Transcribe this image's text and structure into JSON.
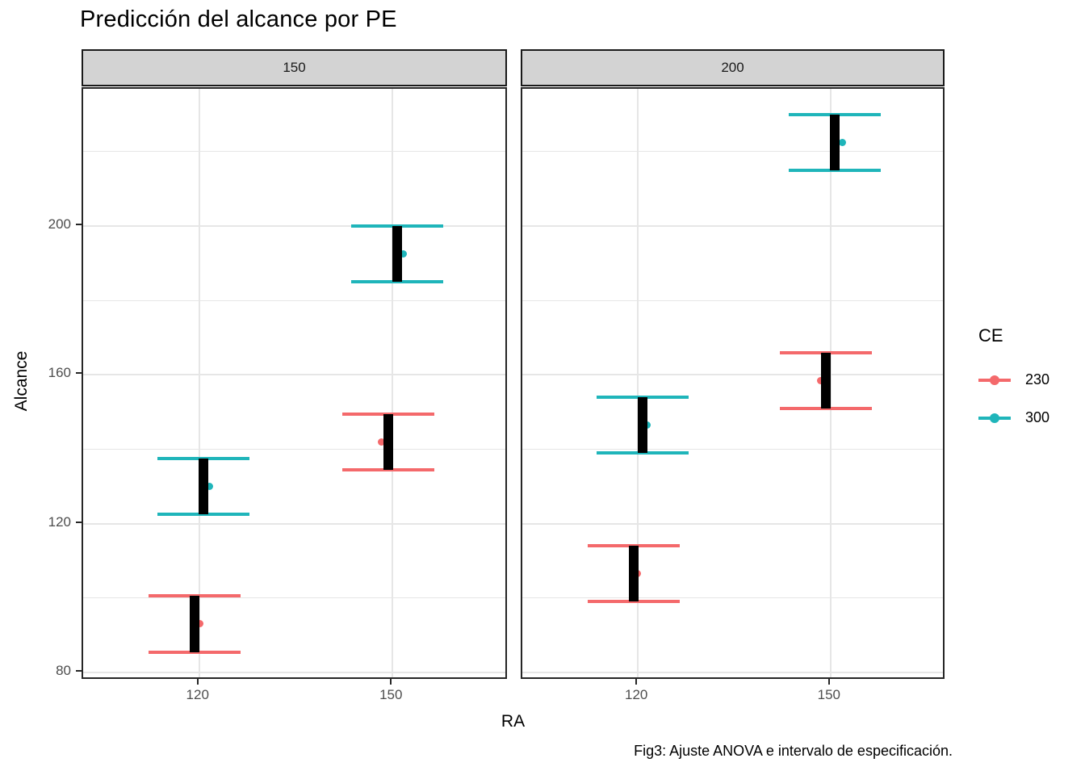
{
  "chart_data": {
    "type": "crossbar",
    "title": "Predicción del alcance por PE",
    "xlabel": "RA",
    "ylabel": "Alcance",
    "caption": "Fig3: Ajuste ANOVA e intervalo de especificación.",
    "facet_variable": "PE",
    "facets": [
      "150",
      "200"
    ],
    "x_categories": [
      "120",
      "150"
    ],
    "series_variable": "CE",
    "series": [
      {
        "name": "230",
        "color": "#F4696B"
      },
      {
        "name": "300",
        "color": "#1FB5BA"
      }
    ],
    "ylim": [
      77.8,
      236.9
    ],
    "y_major_breaks": [
      80,
      120,
      160,
      200
    ],
    "y_minor_breaks": [
      100,
      140,
      180,
      220
    ],
    "grid": true,
    "legend_position": "right",
    "points": [
      {
        "facet": "150",
        "x": "120",
        "series": "230",
        "mean": 93,
        "lo": 85.5,
        "hi": 100.5,
        "point_dx": 6
      },
      {
        "facet": "150",
        "x": "120",
        "series": "300",
        "mean": 130,
        "lo": 122.5,
        "hi": 137.5,
        "point_dx": 7
      },
      {
        "facet": "150",
        "x": "150",
        "series": "230",
        "mean": 142,
        "lo": 134.5,
        "hi": 149.5,
        "point_dx": -8
      },
      {
        "facet": "150",
        "x": "150",
        "series": "300",
        "mean": 192.5,
        "lo": 185,
        "hi": 200,
        "point_dx": 8
      },
      {
        "facet": "200",
        "x": "120",
        "series": "230",
        "mean": 106.5,
        "lo": 99,
        "hi": 114,
        "point_dx": 5
      },
      {
        "facet": "200",
        "x": "120",
        "series": "300",
        "mean": 146.5,
        "lo": 139,
        "hi": 154,
        "point_dx": 6
      },
      {
        "facet": "200",
        "x": "150",
        "series": "230",
        "mean": 158.5,
        "lo": 151,
        "hi": 166,
        "point_dx": -7
      },
      {
        "facet": "200",
        "x": "150",
        "series": "300",
        "mean": 222.5,
        "lo": 215,
        "hi": 230,
        "point_dx": 9
      }
    ]
  }
}
